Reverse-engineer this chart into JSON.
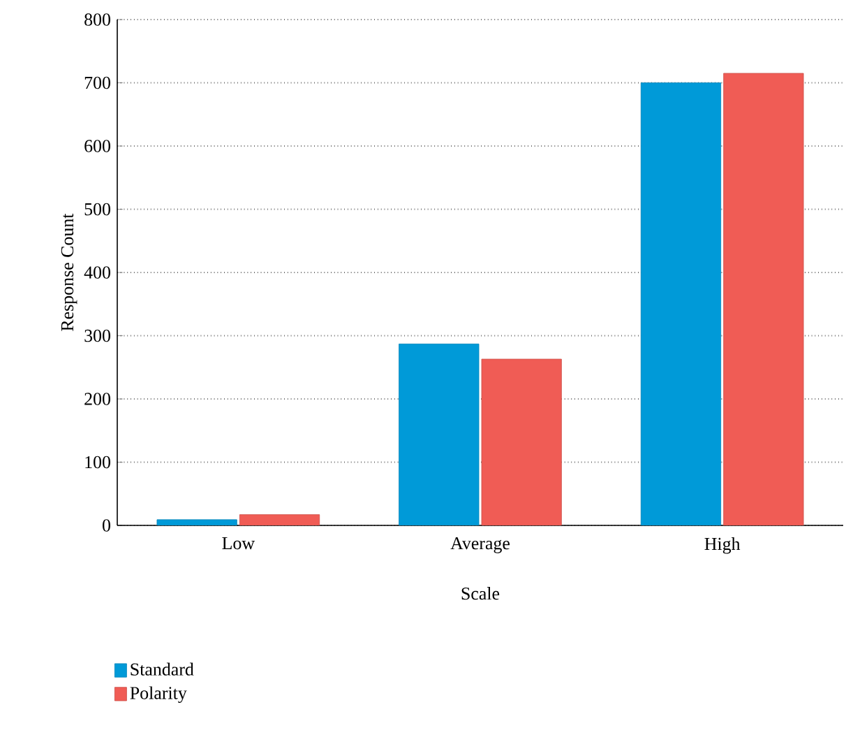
{
  "chart_data": {
    "type": "bar",
    "xlabel": "Scale",
    "ylabel": "Response Count",
    "categories": [
      "Low",
      "Average",
      "High"
    ],
    "series": [
      {
        "name": "Standard",
        "color": "#009ad8",
        "values": [
          9,
          287,
          700
        ]
      },
      {
        "name": "Polarity",
        "color": "#f05c55",
        "values": [
          17,
          263,
          715
        ]
      }
    ],
    "ylim": [
      0,
      800
    ],
    "yticks": [
      0,
      100,
      200,
      300,
      400,
      500,
      600,
      700,
      800
    ],
    "grid": "y",
    "legend": "bottom left"
  }
}
